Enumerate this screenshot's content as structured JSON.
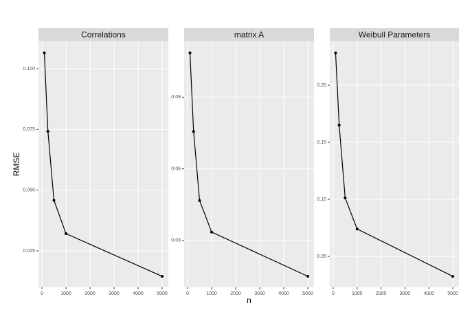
{
  "chart_data": [
    {
      "type": "line",
      "title": "Correlations",
      "y_label": "RMSE",
      "x": [
        100,
        250,
        500,
        1000,
        5000
      ],
      "values": [
        0.1065,
        0.0742,
        0.0458,
        0.0321,
        0.0145
      ],
      "color": "#000000",
      "xlim": [
        -143,
        5257
      ],
      "xticks": [
        0,
        1000,
        2000,
        3000,
        4000,
        5000
      ],
      "ylim": [
        0.01,
        0.1113
      ],
      "yticks": [
        {
          "value": 0.025,
          "label": "0.025"
        },
        {
          "value": 0.05,
          "label": "0.050"
        },
        0.075,
        {
          "value": 0.1,
          "label": "0.100"
        }
      ],
      "grid": true
    },
    {
      "type": "line",
      "title": "matrix A",
      "x_label": "n",
      "x": [
        100,
        250,
        500,
        1000,
        5000
      ],
      "values": [
        0.1085,
        0.0756,
        0.0467,
        0.0335,
        0.015
      ],
      "color": "#000000",
      "xlim": [
        -143,
        5257
      ],
      "xticks": [
        0,
        1000,
        2000,
        3000,
        4000,
        5000
      ],
      "ylim": [
        0.0104,
        0.1134
      ],
      "yticks": [
        0.03,
        0.06,
        0.09
      ],
      "grid": true
    },
    {
      "type": "line",
      "title": "Weibull Parameters",
      "x": [
        100,
        250,
        500,
        1000,
        5000
      ],
      "values": [
        0.2283,
        0.165,
        0.1012,
        0.074,
        0.0325
      ],
      "color": "#000000",
      "xlim": [
        -143,
        5257
      ],
      "xticks": [
        0,
        1000,
        2000,
        3000,
        4000,
        5000
      ],
      "ylim": [
        0.0229,
        0.2386
      ],
      "yticks": [
        0.05,
        {
          "value": 0.1,
          "label": "0.10"
        },
        0.15,
        {
          "value": 0.2,
          "label": "0.20"
        }
      ],
      "grid": true
    }
  ]
}
